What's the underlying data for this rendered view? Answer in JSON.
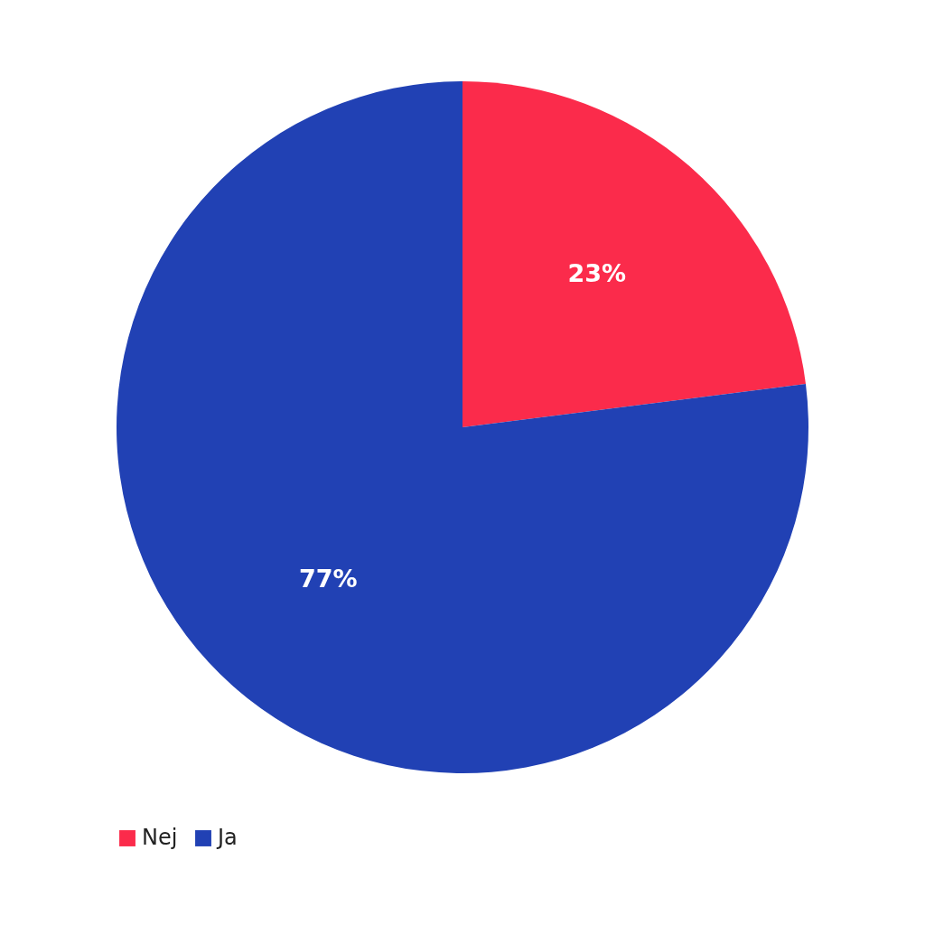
{
  "chart_data": {
    "type": "pie",
    "categories": [
      "Nej",
      "Ja"
    ],
    "values": [
      23,
      77
    ],
    "colors": [
      "#fb2b4b",
      "#2141b4"
    ],
    "value_labels": [
      "23%",
      "77%"
    ],
    "legend": "bottom"
  }
}
